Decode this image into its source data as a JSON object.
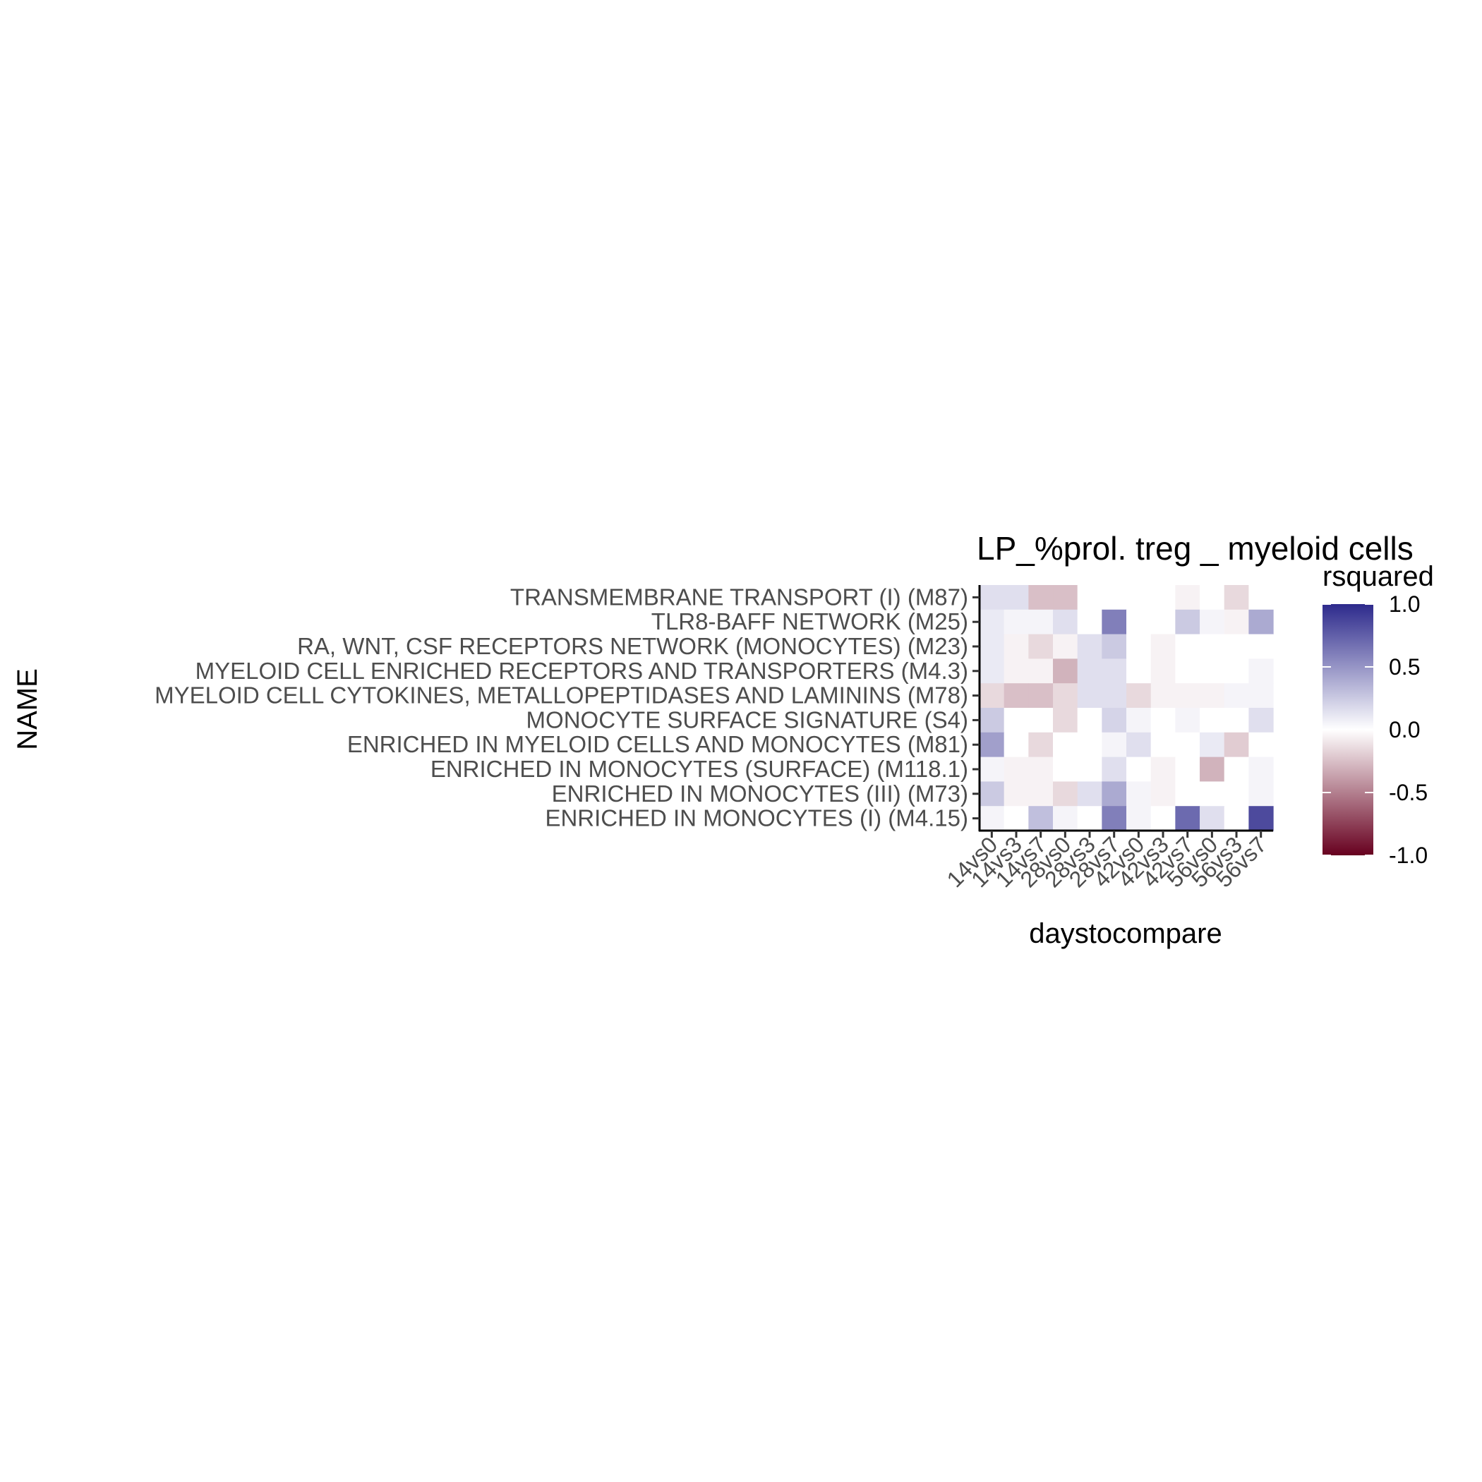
{
  "chart_data": {
    "type": "heatmap",
    "title": "LP_%prol. treg _ myeloid cells",
    "xlabel": "daystocompare",
    "ylabel": "NAME",
    "x_categories": [
      "14vs0",
      "14vs3",
      "14vs7",
      "28vs0",
      "28vs3",
      "28vs7",
      "42vs0",
      "42vs3",
      "42vs7",
      "56vs0",
      "56vs3",
      "56vs7"
    ],
    "y_categories": [
      "TRANSMEMBRANE TRANSPORT (I) (M87)",
      "TLR8-BAFF NETWORK (M25)",
      "RA, WNT, CSF RECEPTORS NETWORK (MONOCYTES) (M23)",
      "MYELOID CELL ENRICHED RECEPTORS AND TRANSPORTERS (M4.3)",
      "MYELOID CELL CYTOKINES, METALLOPEPTIDASES AND LAMININS (M78)",
      "MONOCYTE SURFACE SIGNATURE (S4)",
      "ENRICHED IN MYELOID CELLS AND MONOCYTES (M81)",
      "ENRICHED IN MONOCYTES (SURFACE) (M118.1)",
      "ENRICHED IN MONOCYTES (III) (M73)",
      "ENRICHED IN MONOCYTES (I) (M4.15)"
    ],
    "values": [
      [
        0.15,
        0.15,
        -0.25,
        -0.25,
        0.0,
        0.0,
        0.0,
        0.0,
        -0.05,
        0.0,
        -0.15,
        0.0
      ],
      [
        0.1,
        0.05,
        0.05,
        0.15,
        0.0,
        0.6,
        0.0,
        0.0,
        0.25,
        0.05,
        -0.05,
        0.4
      ],
      [
        0.1,
        -0.05,
        -0.15,
        -0.05,
        0.15,
        0.25,
        0.0,
        -0.05,
        0.0,
        0.0,
        0.0,
        0.0
      ],
      [
        0.1,
        -0.05,
        -0.05,
        -0.3,
        0.15,
        0.15,
        0.0,
        -0.05,
        0.0,
        0.0,
        0.0,
        0.05
      ],
      [
        -0.15,
        -0.25,
        -0.25,
        -0.15,
        0.15,
        0.15,
        -0.15,
        -0.05,
        -0.05,
        -0.05,
        0.05,
        0.05
      ],
      [
        0.25,
        0.0,
        0.0,
        -0.15,
        0.0,
        0.2,
        0.05,
        0.0,
        0.05,
        0.0,
        0.0,
        0.15
      ],
      [
        0.45,
        0.0,
        -0.15,
        0.0,
        0.0,
        0.05,
        0.15,
        0.0,
        0.0,
        0.1,
        -0.2,
        0.0
      ],
      [
        0.05,
        -0.05,
        -0.05,
        0.0,
        0.0,
        0.15,
        0.0,
        -0.05,
        0.0,
        -0.3,
        0.0,
        0.05
      ],
      [
        0.25,
        -0.05,
        -0.05,
        -0.15,
        0.15,
        0.4,
        0.05,
        -0.05,
        0.0,
        0.0,
        0.0,
        0.05
      ],
      [
        0.05,
        0.0,
        0.3,
        0.05,
        0.0,
        0.6,
        0.05,
        0.0,
        0.7,
        0.15,
        0.0,
        0.85
      ]
    ],
    "legend": {
      "title": "rsquared",
      "range": [
        -1.0,
        1.0
      ],
      "ticks": [
        "1.0",
        "0.5",
        "0.0",
        "-0.5",
        "-1.0"
      ],
      "colors": {
        "low": "#67001f",
        "mid": "#ffffff",
        "high": "#2d2a8c"
      }
    },
    "grid": false,
    "legend_position": "right"
  }
}
